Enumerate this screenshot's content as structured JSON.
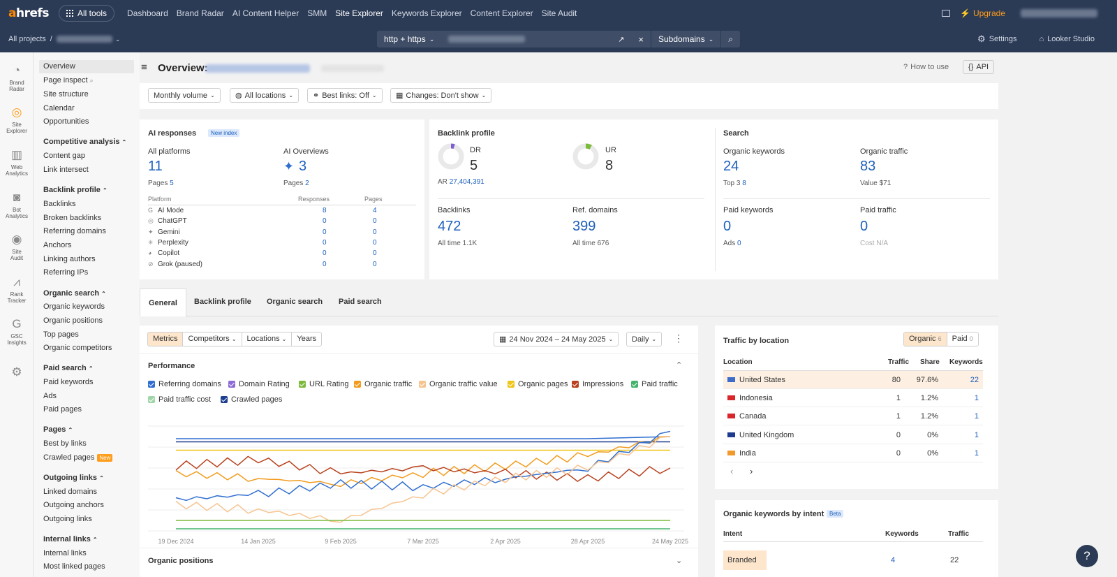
{
  "topbar": {
    "logo_a": "a",
    "logo_rest": "hrefs",
    "all_tools": "All tools",
    "nav": [
      "Dashboard",
      "Brand Radar",
      "AI Content Helper",
      "SMM",
      "Site Explorer",
      "Keywords Explorer",
      "Content Explorer",
      "Site Audit"
    ],
    "upgrade": "Upgrade"
  },
  "subbar": {
    "all_projects": "All projects",
    "protocol": "http + https",
    "subdomains": "Subdomains",
    "settings": "Settings",
    "looker": "Looker Studio"
  },
  "apps": [
    {
      "label1": "Brand",
      "label2": "Radar",
      "icon": "radar-icon"
    },
    {
      "label1": "Site",
      "label2": "Explorer",
      "icon": "globe-icon"
    },
    {
      "label1": "Web",
      "label2": "Analytics",
      "icon": "bar-chart-icon"
    },
    {
      "label1": "Bot",
      "label2": "Analytics",
      "icon": "bot-icon"
    },
    {
      "label1": "Site",
      "label2": "Audit",
      "icon": "audit-icon"
    },
    {
      "label1": "Rank",
      "label2": "Tracker",
      "icon": "tracker-icon"
    },
    {
      "label1": "GSC",
      "label2": "Insights",
      "icon": "google-icon"
    }
  ],
  "menu": {
    "overview": "Overview",
    "page_inspect": "Page inspect",
    "site_structure": "Site structure",
    "calendar": "Calendar",
    "opportunities": "Opportunities",
    "competitive": "Competitive analysis",
    "content_gap": "Content gap",
    "link_intersect": "Link intersect",
    "backlink_profile": "Backlink profile",
    "backlinks": "Backlinks",
    "broken_backlinks": "Broken backlinks",
    "referring_domains": "Referring domains",
    "anchors": "Anchors",
    "linking_authors": "Linking authors",
    "referring_ips": "Referring IPs",
    "organic_search": "Organic search",
    "organic_keywords": "Organic keywords",
    "organic_positions": "Organic positions",
    "top_pages": "Top pages",
    "organic_competitors": "Organic competitors",
    "paid_search": "Paid search",
    "paid_keywords": "Paid keywords",
    "ads": "Ads",
    "paid_pages": "Paid pages",
    "pages": "Pages",
    "best_by_links": "Best by links",
    "crawled_pages": "Crawled pages",
    "new": "New",
    "outgoing_links": "Outgoing links",
    "linked_domains": "Linked domains",
    "outgoing_anchors": "Outgoing anchors",
    "outgoing_links_item": "Outgoing links",
    "internal_links": "Internal links",
    "internal_links_item": "Internal links",
    "most_linked": "Most linked pages"
  },
  "header": {
    "title": "Overview:",
    "how_to_use": "How to use",
    "api": "API"
  },
  "filters": {
    "volume": "Monthly volume",
    "locations": "All locations",
    "best_links": "Best links: Off",
    "changes": "Changes: Don't show"
  },
  "ai": {
    "title": "AI responses",
    "badge": "New index",
    "all_platforms": "All platforms",
    "all_value": "11",
    "pages_label": "Pages",
    "pages_value": "5",
    "ao_label": "AI Overviews",
    "ao_value": "3",
    "ao_pages": "2",
    "col_platform": "Platform",
    "col_responses": "Responses",
    "col_pages": "Pages",
    "rows": [
      {
        "name": "AI Mode",
        "r": "8",
        "p": "4"
      },
      {
        "name": "ChatGPT",
        "r": "0",
        "p": "0"
      },
      {
        "name": "Gemini",
        "r": "0",
        "p": "0"
      },
      {
        "name": "Perplexity",
        "r": "0",
        "p": "0"
      },
      {
        "name": "Copilot",
        "r": "0",
        "p": "0"
      },
      {
        "name": "Grok (paused)",
        "r": "0",
        "p": "0"
      }
    ]
  },
  "backlink": {
    "title": "Backlink profile",
    "dr_label": "DR",
    "dr": "5",
    "ar_label": "AR",
    "ar": "27,404,391",
    "ur_label": "UR",
    "ur": "8",
    "backlinks_label": "Backlinks",
    "backlinks": "472",
    "bl_all": "All time",
    "bl_all_v": "1.1K",
    "ref_label": "Ref. domains",
    "ref": "399",
    "ref_all": "All time",
    "ref_all_v": "676"
  },
  "search": {
    "title": "Search",
    "ok_label": "Organic keywords",
    "ok": "24",
    "top3": "Top 3",
    "top3_v": "8",
    "ot_label": "Organic traffic",
    "ot": "83",
    "value_label": "Value",
    "value_v": "$71",
    "pk_label": "Paid keywords",
    "pk": "0",
    "ads_label": "Ads",
    "ads_v": "0",
    "pt_label": "Paid traffic",
    "pt": "0",
    "cost_label": "Cost",
    "cost_v": "N/A"
  },
  "tabs": [
    "General",
    "Backlink profile",
    "Organic search",
    "Paid search"
  ],
  "perf": {
    "metrics": "Metrics",
    "competitors": "Competitors",
    "locations": "Locations",
    "years": "Years",
    "date": "24 Nov 2024 – 24 May 2025",
    "daily": "Daily",
    "title": "Performance",
    "organic_positions": "Organic positions",
    "legend": [
      {
        "n": "Referring domains",
        "c": "#2f6ecf"
      },
      {
        "n": "Domain Rating",
        "c": "#8c6bd6"
      },
      {
        "n": "URL Rating",
        "c": "#7cba3c"
      },
      {
        "n": "Organic traffic",
        "c": "#f29b1d"
      },
      {
        "n": "Organic traffic value",
        "c": "#f6c490"
      },
      {
        "n": "Organic pages",
        "c": "#f0c419"
      },
      {
        "n": "Impressions",
        "c": "#b8421d"
      },
      {
        "n": "Paid traffic",
        "c": "#45b36b"
      },
      {
        "n": "Paid traffic cost",
        "c": "#9fd6a8"
      },
      {
        "n": "Crawled pages",
        "c": "#1d3f8f"
      }
    ]
  },
  "chart_data": {
    "type": "line",
    "x": [
      "19 Dec 2024",
      "14 Jan 2025",
      "9 Feb 2025",
      "7 Mar 2025",
      "2 Apr 2025",
      "28 Apr 2025",
      "24 May 2025"
    ],
    "series": [
      {
        "name": "Referring domains",
        "color": "#2f6ecf",
        "values": [
          0.88,
          0.88,
          0.88,
          0.88,
          0.88,
          0.88,
          0.9
        ]
      },
      {
        "name": "Crawled pages",
        "color": "#1d3f8f",
        "values": [
          0.85,
          0.85,
          0.85,
          0.85,
          0.85,
          0.85,
          0.85
        ]
      },
      {
        "name": "Organic pages",
        "color": "#f0c419",
        "values": [
          0.77,
          0.77,
          0.77,
          0.77,
          0.77,
          0.77,
          0.77
        ]
      },
      {
        "name": "Organic traffic",
        "color": "#f29b1d",
        "values": [
          0.55,
          0.5,
          0.45,
          0.55,
          0.62,
          0.72,
          0.9
        ]
      },
      {
        "name": "Impressions",
        "color": "#b8421d",
        "values": [
          0.62,
          0.68,
          0.55,
          0.6,
          0.55,
          0.5,
          0.6
        ]
      },
      {
        "name": "Domain Rating",
        "color": "#2f6ecf",
        "values": [
          0.3,
          0.35,
          0.45,
          0.42,
          0.5,
          0.6,
          0.95
        ]
      },
      {
        "name": "Organic traffic value",
        "color": "#f6c490",
        "values": [
          0.25,
          0.2,
          0.1,
          0.35,
          0.5,
          0.6,
          0.9
        ]
      },
      {
        "name": "URL Rating",
        "color": "#7cba3c",
        "values": [
          0.1,
          0.1,
          0.1,
          0.1,
          0.1,
          0.1,
          0.1
        ]
      },
      {
        "name": "Paid traffic",
        "color": "#45b36b",
        "values": [
          0.02,
          0.02,
          0.02,
          0.02,
          0.02,
          0.02,
          0.02
        ]
      }
    ]
  },
  "loc": {
    "title": "Traffic by location",
    "organic": "Organic",
    "organic_n": "6",
    "paid": "Paid",
    "paid_n": "0",
    "col_location": "Location",
    "col_traffic": "Traffic",
    "col_share": "Share",
    "col_keywords": "Keywords",
    "rows": [
      {
        "name": "United States",
        "traffic": "80",
        "share": "97.6%",
        "kw": "22",
        "flag": "us"
      },
      {
        "name": "Indonesia",
        "traffic": "1",
        "share": "1.2%",
        "kw": "1",
        "flag": "id"
      },
      {
        "name": "Canada",
        "traffic": "1",
        "share": "1.2%",
        "kw": "1",
        "flag": "ca"
      },
      {
        "name": "United Kingdom",
        "traffic": "0",
        "share": "0%",
        "kw": "1",
        "flag": "gb"
      },
      {
        "name": "India",
        "traffic": "0",
        "share": "0%",
        "kw": "1",
        "flag": "in"
      }
    ]
  },
  "intent": {
    "title": "Organic keywords by intent",
    "badge": "Beta",
    "col_intent": "Intent",
    "col_keywords": "Keywords",
    "col_traffic": "Traffic",
    "branded": "Branded",
    "branded_kw": "4",
    "branded_tr": "22"
  }
}
